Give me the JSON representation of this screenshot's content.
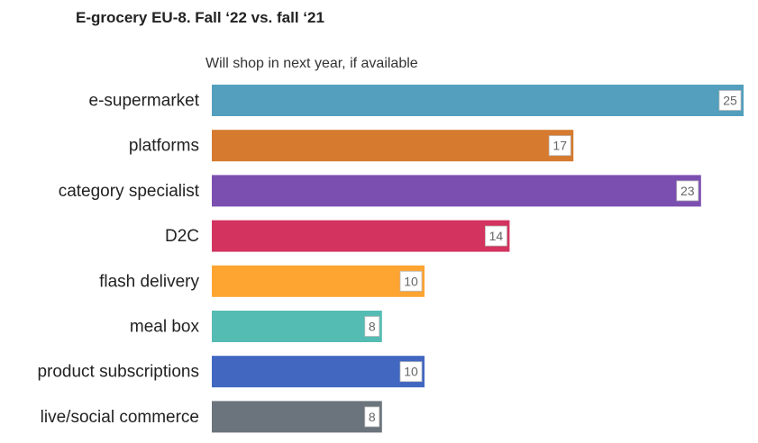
{
  "title": "E-grocery EU-8. Fall ‘22 vs. fall ‘21",
  "subtitle": "Will shop in next year, if available",
  "chart_data": {
    "type": "bar",
    "orientation": "horizontal",
    "title": "E-grocery EU-8. Fall ‘22 vs. fall ‘21",
    "subtitle": "Will shop in next year, if available",
    "xlabel": "",
    "ylabel": "",
    "xlim": [
      0,
      25
    ],
    "grid": false,
    "legend": "none",
    "categories": [
      "e-supermarket",
      "platforms",
      "category specialist",
      "D2C",
      "flash delivery",
      "meal box",
      "product subscriptions",
      "live/social commerce"
    ],
    "values": [
      25,
      17,
      23,
      14,
      10,
      8,
      10,
      8
    ],
    "colors": [
      "#539fbd",
      "#d57a2e",
      "#7b4fb0",
      "#d3335f",
      "#fea431",
      "#55bcb3",
      "#4167c1",
      "#6b747c"
    ]
  }
}
